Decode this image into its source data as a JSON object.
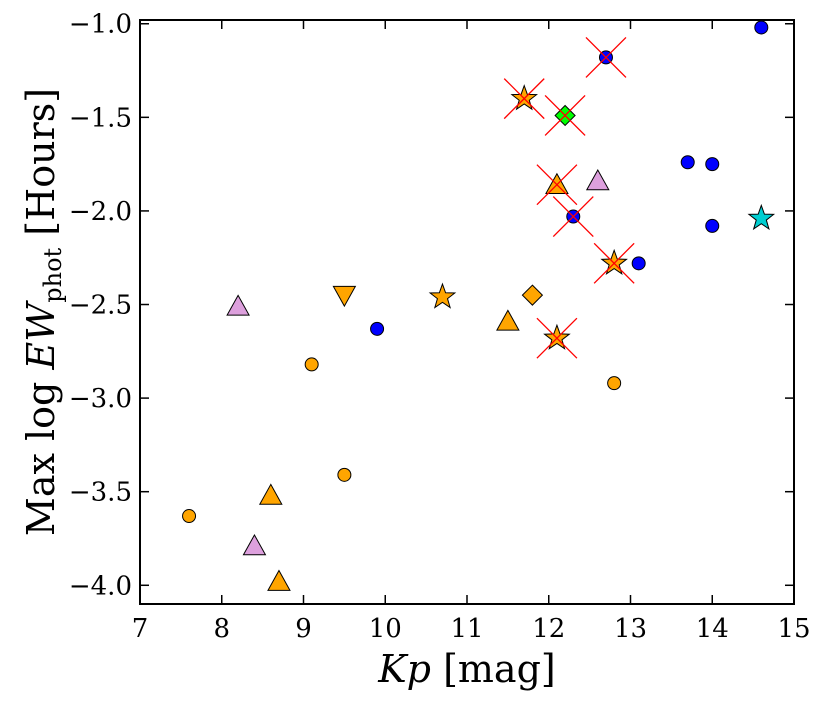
{
  "chart_data": {
    "type": "scatter",
    "title": "",
    "xlabel": {
      "var": "Kp",
      "unit": "[mag]"
    },
    "ylabel": {
      "prefix": "Max log",
      "var": "EW",
      "sub": "phot",
      "unit": "[Hours]"
    },
    "xlim": [
      7,
      15
    ],
    "ylim": [
      -4.1,
      -0.98
    ],
    "xticks": [
      7,
      8,
      9,
      10,
      11,
      12,
      13,
      14,
      15
    ],
    "yticks": [
      -4.0,
      -3.5,
      -3.0,
      -2.5,
      -2.0,
      -1.5,
      -1.0
    ],
    "xtick_labels": [
      "7",
      "8",
      "9",
      "10",
      "11",
      "12",
      "13",
      "14",
      "15"
    ],
    "ytick_labels": [
      "−4.0",
      "−3.5",
      "−3.0",
      "−2.5",
      "−2.0",
      "−1.5",
      "−1.0"
    ],
    "grid": false,
    "colors": {
      "orange": "#FFA500",
      "blue": "#0000FF",
      "violet": "#DDA0DD",
      "green": "#00FF00",
      "cyan": "#00CED1",
      "cross": "#FF0000"
    },
    "points": [
      {
        "x": 7.6,
        "y": -3.63,
        "marker": "circle",
        "color": "orange",
        "crossed": false
      },
      {
        "x": 8.2,
        "y": -2.51,
        "marker": "triangle",
        "color": "violet",
        "crossed": false
      },
      {
        "x": 8.4,
        "y": -3.79,
        "marker": "triangle",
        "color": "violet",
        "crossed": false
      },
      {
        "x": 8.6,
        "y": -3.52,
        "marker": "triangle",
        "color": "orange",
        "crossed": false
      },
      {
        "x": 8.7,
        "y": -3.98,
        "marker": "triangle",
        "color": "orange",
        "crossed": false
      },
      {
        "x": 9.1,
        "y": -2.82,
        "marker": "circle",
        "color": "orange",
        "crossed": false
      },
      {
        "x": 9.5,
        "y": -2.45,
        "marker": "triangle-down",
        "color": "orange",
        "crossed": false
      },
      {
        "x": 9.5,
        "y": -3.41,
        "marker": "circle",
        "color": "orange",
        "crossed": false
      },
      {
        "x": 9.9,
        "y": -2.63,
        "marker": "circle",
        "color": "blue",
        "crossed": false
      },
      {
        "x": 10.7,
        "y": -2.46,
        "marker": "star",
        "color": "orange",
        "crossed": false
      },
      {
        "x": 11.5,
        "y": -2.59,
        "marker": "triangle",
        "color": "orange",
        "crossed": false
      },
      {
        "x": 11.7,
        "y": -1.4,
        "marker": "star",
        "color": "orange",
        "crossed": true
      },
      {
        "x": 11.8,
        "y": -2.45,
        "marker": "diamond",
        "color": "orange",
        "crossed": false
      },
      {
        "x": 12.1,
        "y": -1.86,
        "marker": "triangle",
        "color": "orange",
        "crossed": true
      },
      {
        "x": 12.1,
        "y": -2.68,
        "marker": "star",
        "color": "orange",
        "crossed": true
      },
      {
        "x": 12.2,
        "y": -1.49,
        "marker": "diamond",
        "color": "green",
        "crossed": true
      },
      {
        "x": 12.3,
        "y": -2.03,
        "marker": "circle",
        "color": "blue",
        "crossed": true
      },
      {
        "x": 12.6,
        "y": -1.84,
        "marker": "triangle",
        "color": "violet",
        "crossed": false
      },
      {
        "x": 12.7,
        "y": -1.18,
        "marker": "circle",
        "color": "blue",
        "crossed": true
      },
      {
        "x": 12.8,
        "y": -2.28,
        "marker": "star",
        "color": "orange",
        "crossed": true
      },
      {
        "x": 12.8,
        "y": -2.92,
        "marker": "circle",
        "color": "orange",
        "crossed": false
      },
      {
        "x": 13.1,
        "y": -2.28,
        "marker": "circle",
        "color": "blue",
        "crossed": false
      },
      {
        "x": 13.7,
        "y": -1.74,
        "marker": "circle",
        "color": "blue",
        "crossed": false
      },
      {
        "x": 14.0,
        "y": -1.75,
        "marker": "circle",
        "color": "blue",
        "crossed": false
      },
      {
        "x": 14.0,
        "y": -2.08,
        "marker": "circle",
        "color": "blue",
        "crossed": false
      },
      {
        "x": 14.6,
        "y": -1.02,
        "marker": "circle",
        "color": "blue",
        "crossed": false
      },
      {
        "x": 14.6,
        "y": -2.04,
        "marker": "star",
        "color": "cyan",
        "crossed": false
      }
    ]
  }
}
